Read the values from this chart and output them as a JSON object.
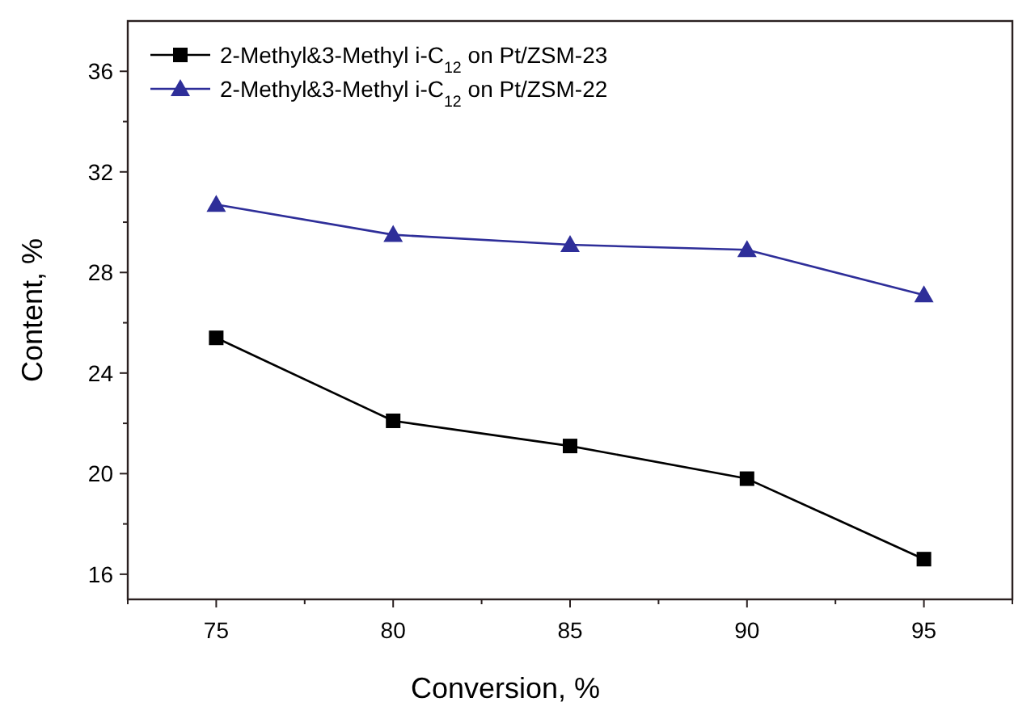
{
  "chart_data": {
    "type": "line",
    "xlabel": "Conversion, %",
    "ylabel": "Content, %",
    "x": [
      75,
      80,
      85,
      90,
      95
    ],
    "series": [
      {
        "name": "2-Methyl&3-Methyl i-C$_{12}$ on Pt/ZSM-23",
        "color": "#000000",
        "marker": "square",
        "values": [
          25.4,
          22.1,
          21.1,
          19.8,
          16.6
        ]
      },
      {
        "name": "2-Methyl&3-Methyl i-C$_{12}$ on Pt/ZSM-22",
        "color": "#2e2e99",
        "marker": "triangle",
        "values": [
          30.7,
          29.5,
          29.1,
          28.9,
          27.1
        ]
      }
    ],
    "xlim": [
      72.5,
      97.5
    ],
    "xticks": [
      {
        "value": 72.5,
        "label": null
      },
      75,
      {
        "value": 77.5,
        "label": null
      },
      80,
      {
        "value": 82.5,
        "label": null
      },
      85,
      {
        "value": 87.5,
        "label": null
      },
      90,
      {
        "value": 92.5,
        "label": null
      },
      95,
      {
        "value": 97.5,
        "label": null
      }
    ],
    "ylim": [
      15,
      38
    ],
    "yticks": [
      16,
      {
        "value": 18,
        "label": null
      },
      20,
      {
        "value": 22,
        "label": null
      },
      24,
      {
        "value": 26,
        "label": null
      },
      28,
      {
        "value": 30,
        "label": null
      },
      32,
      {
        "value": 34,
        "label": null
      },
      36
    ],
    "grid": false,
    "legend": "top left",
    "line_style": "solid"
  }
}
